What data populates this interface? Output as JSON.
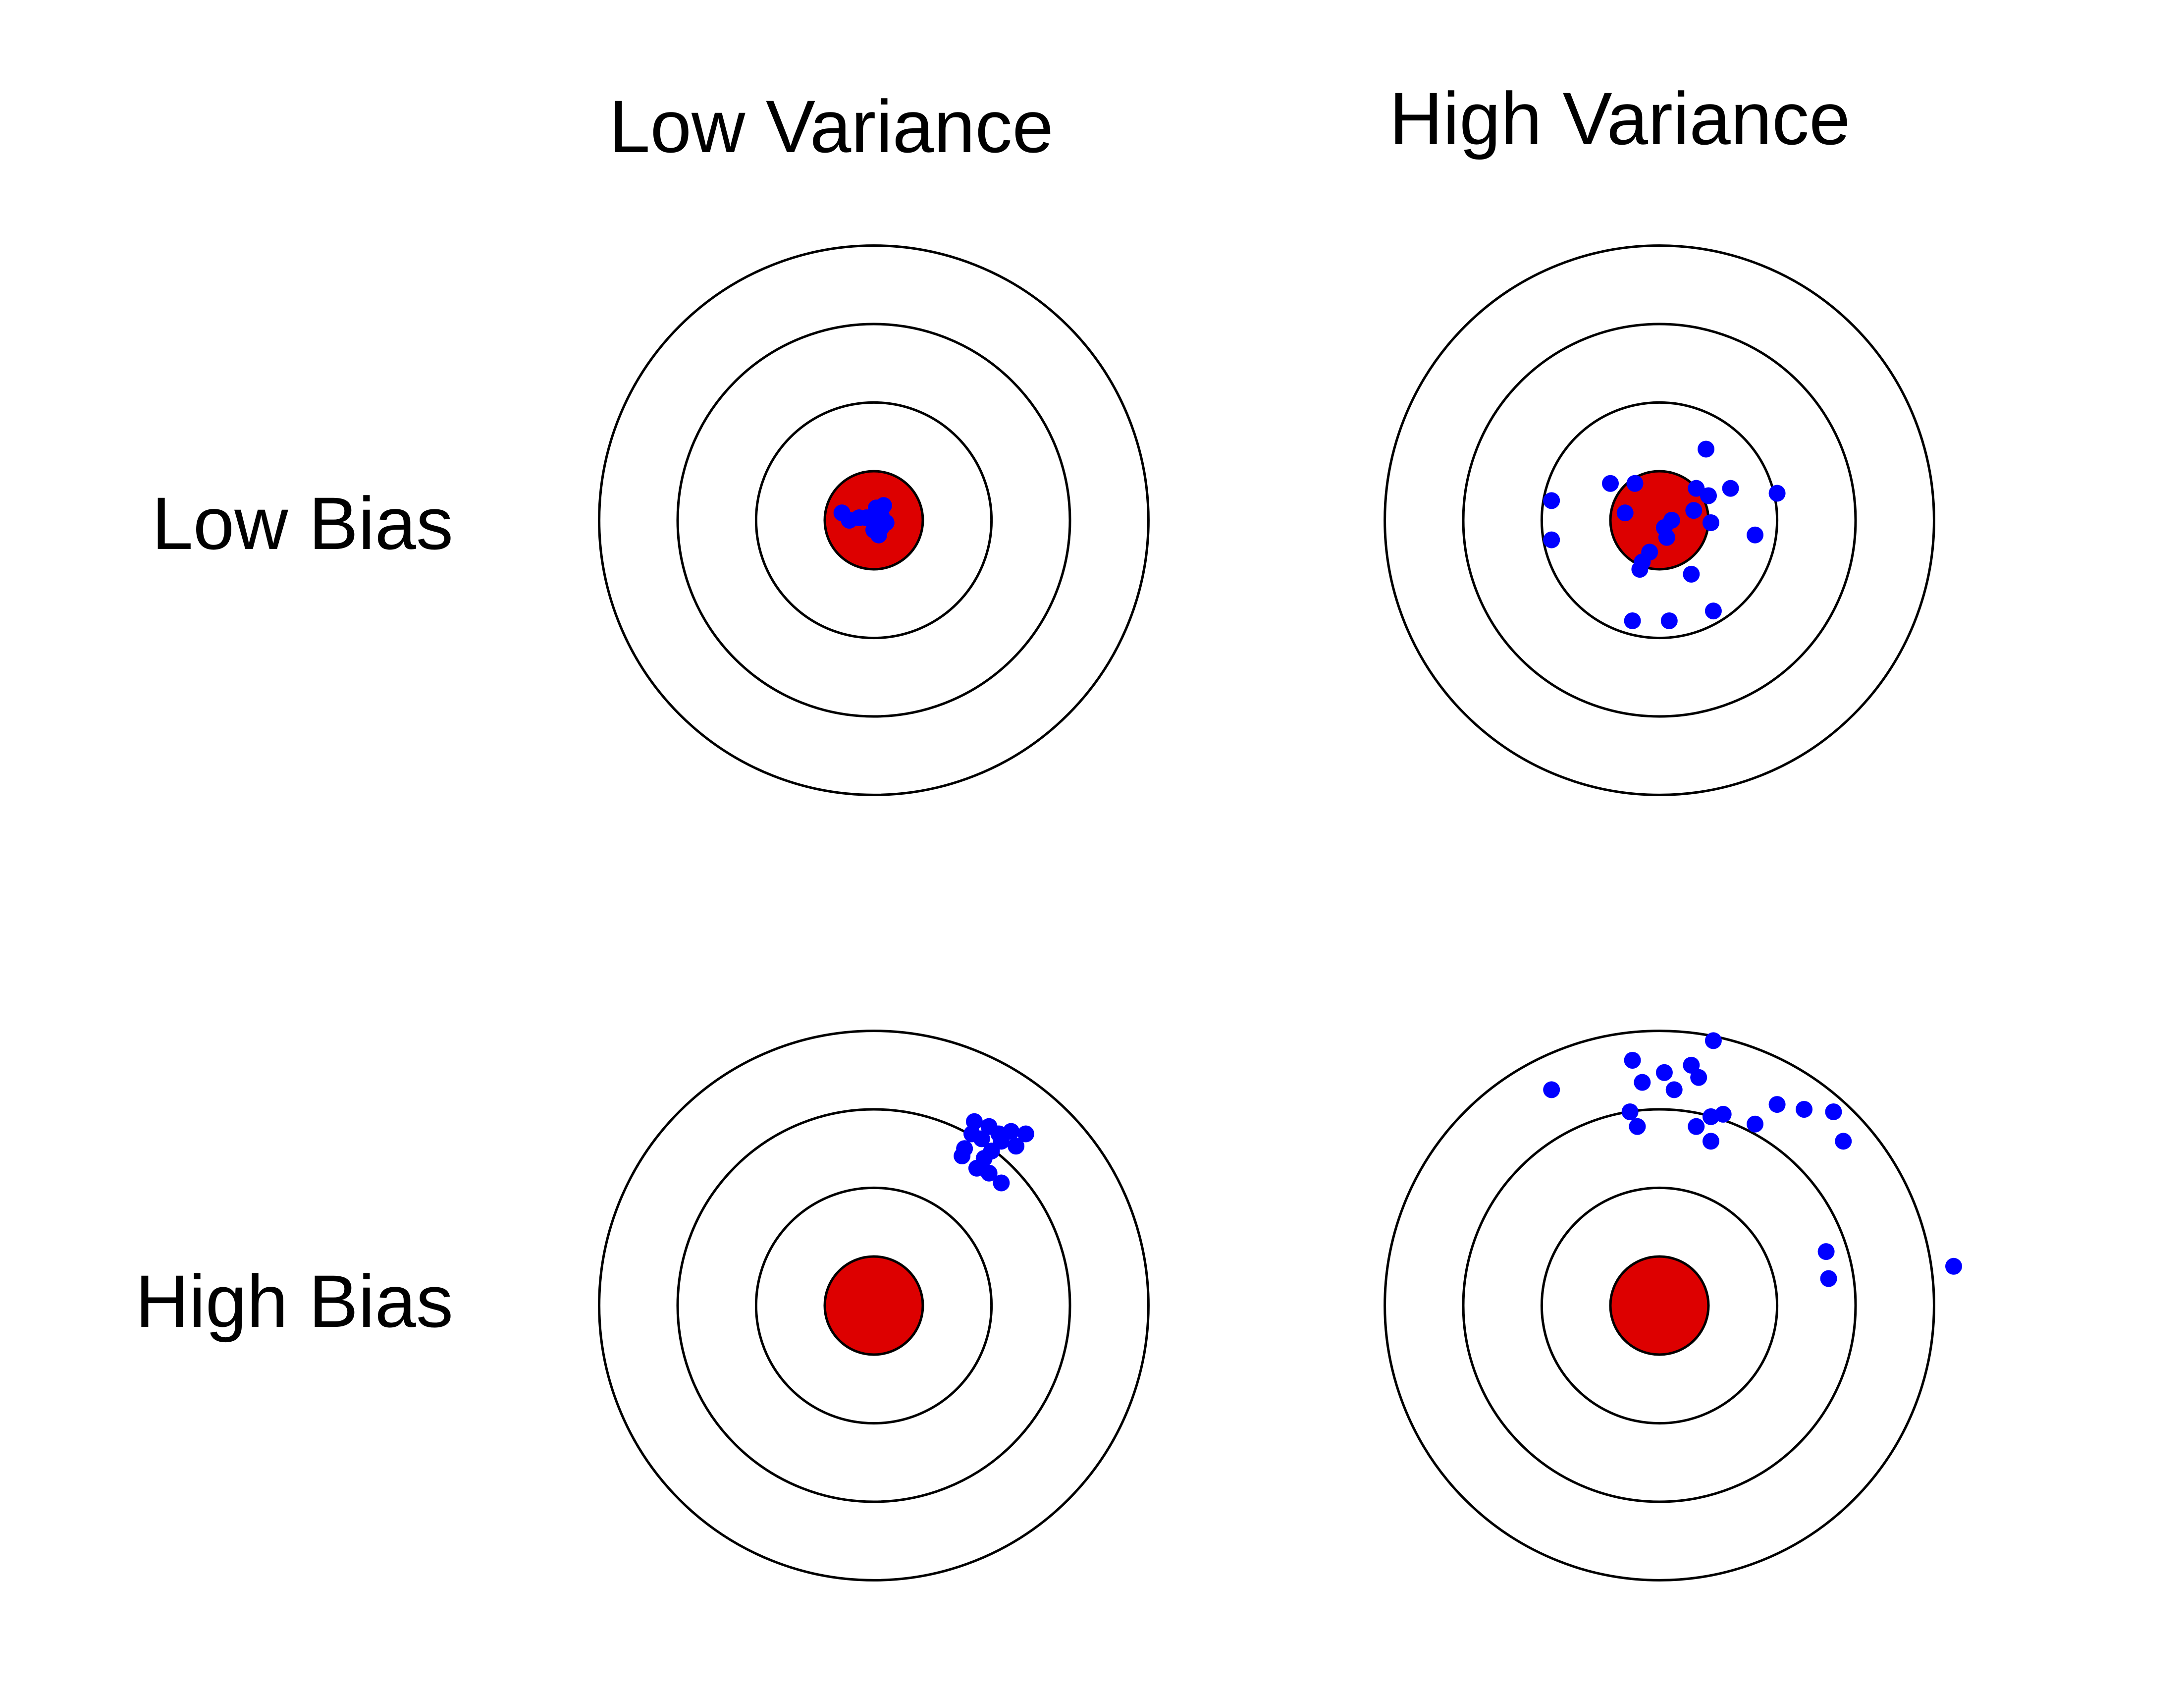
{
  "columns": [
    {
      "key": "low_variance",
      "label": "Low Variance"
    },
    {
      "key": "high_variance",
      "label": "High Variance"
    }
  ],
  "rows": [
    {
      "key": "low_bias",
      "label": "Low Bias"
    },
    {
      "key": "high_bias",
      "label": "High Bias"
    }
  ],
  "colors": {
    "ring_stroke": "#000000",
    "bullseye_fill": "#dd0000",
    "shot_fill": "#0000ff",
    "background": "#ffffff"
  },
  "target": {
    "ring_count": 3,
    "bullseye_radius": 1,
    "ring_radii": [
      2.4,
      4.0,
      5.6
    ],
    "units": "bullseye radii"
  },
  "panels": [
    {
      "row": "low_bias",
      "column": "low_variance",
      "shots": [
        [
          0.1,
          0.1
        ],
        [
          -0.3,
          0.05
        ],
        [
          0.15,
          -0.1
        ],
        [
          0.1,
          -0.15
        ],
        [
          0.05,
          0.25
        ],
        [
          -0.65,
          0.15
        ],
        [
          -0.5,
          0.0
        ],
        [
          0.2,
          0.3
        ],
        [
          0.25,
          -0.05
        ],
        [
          0.1,
          0.0
        ],
        [
          0.0,
          -0.2
        ],
        [
          0.1,
          -0.1
        ],
        [
          -0.15,
          0.05
        ],
        [
          0.15,
          -0.15
        ],
        [
          0.1,
          -0.3
        ],
        [
          0.15,
          0.1
        ]
      ]
    },
    {
      "row": "low_bias",
      "column": "high_variance",
      "shots": [
        [
          -2.2,
          0.4
        ],
        [
          -2.2,
          -0.4
        ],
        [
          -1.0,
          0.75
        ],
        [
          -0.7,
          0.15
        ],
        [
          -0.5,
          0.75
        ],
        [
          0.95,
          1.45
        ],
        [
          0.75,
          0.65
        ],
        [
          1.45,
          0.65
        ],
        [
          1.0,
          0.5
        ],
        [
          0.7,
          0.2
        ],
        [
          0.25,
          0.0
        ],
        [
          1.05,
          -0.05
        ],
        [
          0.1,
          -0.15
        ],
        [
          -0.2,
          -0.65
        ],
        [
          -0.35,
          -0.85
        ],
        [
          0.65,
          -1.1
        ],
        [
          2.4,
          0.55
        ],
        [
          1.95,
          -0.3
        ],
        [
          -0.55,
          -2.05
        ],
        [
          0.2,
          -2.05
        ],
        [
          1.1,
          -1.85
        ],
        [
          0.15,
          -0.35
        ],
        [
          -0.4,
          -1.0
        ]
      ]
    },
    {
      "row": "high_bias",
      "column": "low_variance",
      "shots": [
        [
          2.05,
          3.75
        ],
        [
          2.35,
          3.65
        ],
        [
          2.55,
          3.5
        ],
        [
          2.8,
          3.55
        ],
        [
          3.1,
          3.5
        ],
        [
          2.0,
          3.5
        ],
        [
          1.85,
          3.2
        ],
        [
          2.25,
          3.0
        ],
        [
          2.4,
          3.15
        ],
        [
          2.6,
          3.35
        ],
        [
          2.9,
          3.25
        ],
        [
          1.8,
          3.05
        ],
        [
          2.1,
          2.8
        ],
        [
          2.35,
          2.7
        ],
        [
          2.6,
          2.5
        ],
        [
          2.2,
          3.4
        ]
      ]
    },
    {
      "row": "high_bias",
      "column": "high_variance",
      "shots": [
        [
          -2.2,
          4.4
        ],
        [
          -0.55,
          5.0
        ],
        [
          -0.35,
          4.55
        ],
        [
          0.1,
          4.75
        ],
        [
          0.3,
          4.4
        ],
        [
          0.65,
          4.9
        ],
        [
          0.8,
          4.65
        ],
        [
          1.1,
          5.4
        ],
        [
          -0.6,
          3.95
        ],
        [
          -0.45,
          3.65
        ],
        [
          0.75,
          3.65
        ],
        [
          1.05,
          3.85
        ],
        [
          1.3,
          3.9
        ],
        [
          1.95,
          3.7
        ],
        [
          2.4,
          4.1
        ],
        [
          2.95,
          4.0
        ],
        [
          3.55,
          3.95
        ],
        [
          3.75,
          3.35
        ],
        [
          3.4,
          1.1
        ],
        [
          3.45,
          0.55
        ],
        [
          6.0,
          0.8
        ],
        [
          1.05,
          3.35
        ]
      ]
    }
  ]
}
